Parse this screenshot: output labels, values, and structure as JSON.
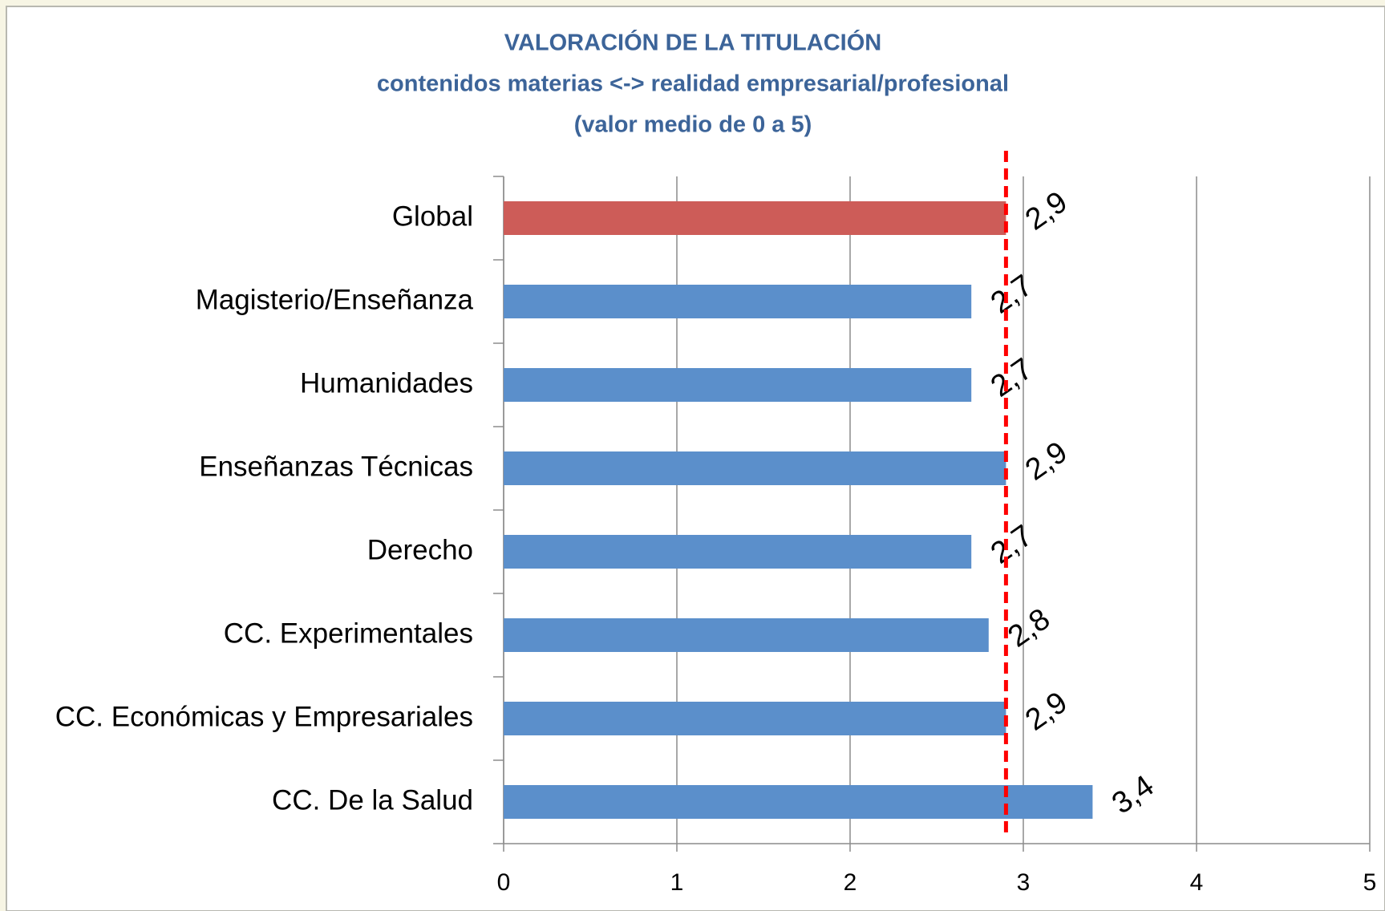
{
  "chart_data": {
    "type": "bar",
    "orientation": "horizontal",
    "title": [
      "VALORACIÓN DE LA TITULACIÓN",
      "contenidos materias <-> realidad empresarial/profesional",
      "(valor medio de 0 a 5)"
    ],
    "categories": [
      "Global",
      "Magisterio/Enseñanza",
      "Humanidades",
      "Enseñanzas Técnicas",
      "Derecho",
      "CC. Experimentales",
      "CC. Económicas y Empresariales",
      "CC. De la Salud"
    ],
    "values": [
      2.9,
      2.7,
      2.7,
      2.9,
      2.7,
      2.8,
      2.9,
      3.4
    ],
    "value_labels": [
      "2,9",
      "2,7",
      "2,7",
      "2,9",
      "2,7",
      "2,8",
      "2,9",
      "3,4"
    ],
    "colors": [
      "#cd5c58",
      "#5b8fcb",
      "#5b8fcb",
      "#5b8fcb",
      "#5b8fcb",
      "#5b8fcb",
      "#5b8fcb",
      "#5b8fcb"
    ],
    "xlim": [
      0,
      5
    ],
    "xticks": [
      0,
      1,
      2,
      3,
      4,
      5
    ],
    "grid": true,
    "reference_line": {
      "value": 2.9,
      "color": "#ff0000"
    }
  }
}
